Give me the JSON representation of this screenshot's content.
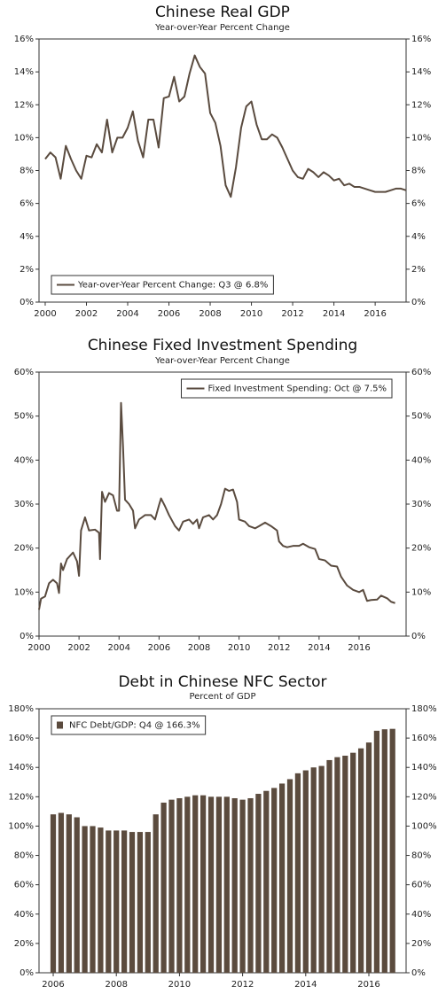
{
  "chart_data": [
    {
      "type": "line",
      "title": "Chinese Real GDP",
      "subtitle": "Year-over-Year Percent Change",
      "x": [
        2000,
        2000.25,
        2000.5,
        2000.75,
        2001,
        2001.25,
        2001.5,
        2001.75,
        2002,
        2002.25,
        2002.5,
        2002.75,
        2003,
        2003.25,
        2003.5,
        2003.75,
        2004,
        2004.25,
        2004.5,
        2004.75,
        2005,
        2005.25,
        2005.5,
        2005.75,
        2006,
        2006.25,
        2006.5,
        2006.75,
        2007,
        2007.25,
        2007.5,
        2007.75,
        2008,
        2008.25,
        2008.5,
        2008.75,
        2009,
        2009.25,
        2009.5,
        2009.75,
        2010,
        2010.25,
        2010.5,
        2010.75,
        2011,
        2011.25,
        2011.5,
        2011.75,
        2012,
        2012.25,
        2012.5,
        2012.75,
        2013,
        2013.25,
        2013.5,
        2013.75,
        2014,
        2014.25,
        2014.5,
        2014.75,
        2015,
        2015.25,
        2015.5,
        2015.75,
        2016,
        2016.25,
        2016.5,
        2016.75,
        2017,
        2017.25,
        2017.5
      ],
      "series": [
        {
          "name": "Year-over-Year Percent Change: Q3 @ 6.8%",
          "color": "#5a4b3f",
          "values": [
            8.7,
            9.1,
            8.8,
            7.5,
            9.5,
            8.7,
            8.0,
            7.5,
            8.9,
            8.8,
            9.6,
            9.1,
            11.1,
            9.1,
            10.0,
            10.0,
            10.6,
            11.6,
            9.8,
            8.8,
            11.1,
            11.1,
            9.4,
            12.4,
            12.5,
            13.7,
            12.2,
            12.5,
            13.9,
            15.0,
            14.3,
            13.9,
            11.5,
            10.9,
            9.5,
            7.1,
            6.4,
            8.2,
            10.6,
            11.9,
            12.2,
            10.8,
            9.9,
            9.9,
            10.2,
            10.0,
            9.4,
            8.7,
            8.0,
            7.6,
            7.5,
            8.1,
            7.9,
            7.6,
            7.9,
            7.7,
            7.4,
            7.5,
            7.1,
            7.2,
            7.0,
            7.0,
            6.9,
            6.8,
            6.7,
            6.7,
            6.7,
            6.8,
            6.9,
            6.9,
            6.8
          ]
        }
      ],
      "xlim": [
        1999.7,
        2017.5
      ],
      "xticks": [
        2000,
        2002,
        2004,
        2006,
        2008,
        2010,
        2012,
        2014,
        2016
      ],
      "ylim": [
        0,
        16
      ],
      "yticks": [
        {
          "value": 0,
          "label": "0%"
        },
        {
          "value": 2,
          "label": "2%"
        },
        {
          "value": 4,
          "label": "4%"
        },
        {
          "value": 6,
          "label": "6%"
        },
        {
          "value": 8,
          "label": "8%"
        },
        {
          "value": 10,
          "label": "10%"
        },
        {
          "value": 12,
          "label": "12%"
        },
        {
          "value": 14,
          "label": "14%"
        },
        {
          "value": 16,
          "label": "16%"
        }
      ],
      "legend": "lower left"
    },
    {
      "type": "line",
      "title": "Chinese Fixed Investment Spending",
      "subtitle": "Year-over-Year Percent Change",
      "x": [
        2000.0,
        2000.1,
        2000.3,
        2000.5,
        2000.7,
        2000.9,
        2001.0,
        2001.1,
        2001.2,
        2001.4,
        2001.7,
        2001.9,
        2002.0,
        2002.1,
        2002.3,
        2002.5,
        2002.8,
        2003.0,
        2003.05,
        2003.15,
        2003.3,
        2003.5,
        2003.7,
        2003.9,
        2004.0,
        2004.1,
        2004.2,
        2004.3,
        2004.5,
        2004.7,
        2004.8,
        2005.0,
        2005.3,
        2005.6,
        2005.8,
        2006.0,
        2006.1,
        2006.3,
        2006.5,
        2006.8,
        2007.0,
        2007.2,
        2007.5,
        2007.7,
        2007.9,
        2008.0,
        2008.2,
        2008.5,
        2008.7,
        2008.9,
        2009.1,
        2009.3,
        2009.5,
        2009.7,
        2009.9,
        2010.0,
        2010.3,
        2010.5,
        2010.8,
        2011.0,
        2011.3,
        2011.6,
        2011.9,
        2012.0,
        2012.2,
        2012.4,
        2012.7,
        2013.0,
        2013.2,
        2013.5,
        2013.8,
        2014.0,
        2014.3,
        2014.6,
        2014.9,
        2015.1,
        2015.4,
        2015.7,
        2016.0,
        2016.2,
        2016.4,
        2016.6,
        2016.9,
        2017.1,
        2017.4,
        2017.6,
        2017.8
      ],
      "series": [
        {
          "name": "Fixed Investment Spending: Oct @ 7.5%",
          "color": "#5a4b3f",
          "values": [
            6,
            8.5,
            9,
            12,
            12.8,
            12,
            9.8,
            16.5,
            15,
            17.5,
            19,
            17,
            13.7,
            24,
            27,
            24,
            24.2,
            23.5,
            17.5,
            32.8,
            30.5,
            32.5,
            32,
            28.5,
            28.5,
            53,
            43,
            31,
            30,
            28.5,
            24.5,
            26.5,
            27.5,
            27.5,
            26.5,
            29.8,
            31.3,
            29.5,
            27.5,
            25,
            24,
            26,
            26.5,
            25.5,
            26.5,
            24.5,
            27,
            27.5,
            26.5,
            27.5,
            30,
            33.5,
            33,
            33.3,
            30.5,
            26.5,
            26,
            25,
            24.5,
            25,
            25.8,
            25,
            24,
            21.5,
            20.5,
            20.2,
            20.5,
            20.5,
            21,
            20.2,
            19.8,
            17.5,
            17.2,
            16,
            15.8,
            13.5,
            11.5,
            10.5,
            10,
            10.5,
            8,
            8.2,
            8.3,
            9.2,
            8.6,
            7.8,
            7.5
          ]
        }
      ],
      "xlim": [
        2000,
        2018.35
      ],
      "xticks": [
        2000,
        2002,
        2004,
        2006,
        2008,
        2010,
        2012,
        2014,
        2016
      ],
      "ylim": [
        0,
        60
      ],
      "yticks": [
        {
          "value": 0,
          "label": "0%"
        },
        {
          "value": 10,
          "label": "10%"
        },
        {
          "value": 20,
          "label": "20%"
        },
        {
          "value": 30,
          "label": "30%"
        },
        {
          "value": 40,
          "label": "40%"
        },
        {
          "value": 50,
          "label": "50%"
        },
        {
          "value": 60,
          "label": "60%"
        }
      ],
      "legend": "upper right"
    },
    {
      "type": "bar",
      "title": "Debt in Chinese NFC Sector",
      "subtitle": "Percent of GDP",
      "x": [
        2006,
        2006.25,
        2006.5,
        2006.75,
        2007,
        2007.25,
        2007.5,
        2007.75,
        2008,
        2008.25,
        2008.5,
        2008.75,
        2009,
        2009.25,
        2009.5,
        2009.75,
        2010,
        2010.25,
        2010.5,
        2010.75,
        2011,
        2011.25,
        2011.5,
        2011.75,
        2012,
        2012.25,
        2012.5,
        2012.75,
        2013,
        2013.25,
        2013.5,
        2013.75,
        2014,
        2014.25,
        2014.5,
        2014.75,
        2015,
        2015.25,
        2015.5,
        2015.75,
        2016,
        2016.25,
        2016.5,
        2016.75
      ],
      "series": [
        {
          "name": "NFC Debt/GDP: Q4 @ 166.3%",
          "color": "#5b4b3e",
          "values": [
            108,
            109,
            108,
            106,
            100,
            100,
            99,
            97,
            97,
            97,
            96,
            96,
            96,
            108,
            116,
            118,
            119,
            120,
            121,
            121,
            120,
            120,
            120,
            119,
            118,
            119,
            122,
            124,
            126,
            129,
            132,
            136,
            138,
            140,
            141,
            145,
            147,
            148,
            150,
            153,
            157,
            165,
            166,
            166.3
          ]
        }
      ],
      "xlim": [
        2005.55,
        2017.18
      ],
      "xticks": [
        2006,
        2008,
        2010,
        2012,
        2014,
        2016
      ],
      "ylim": [
        0,
        180
      ],
      "yticks": [
        {
          "value": 0,
          "label": "0%"
        },
        {
          "value": 20,
          "label": "20%"
        },
        {
          "value": 40,
          "label": "40%"
        },
        {
          "value": 60,
          "label": "60%"
        },
        {
          "value": 80,
          "label": "80%"
        },
        {
          "value": 100,
          "label": "100%"
        },
        {
          "value": 120,
          "label": "120%"
        },
        {
          "value": 140,
          "label": "140%"
        },
        {
          "value": 160,
          "label": "160%"
        },
        {
          "value": 180,
          "label": "180%"
        }
      ],
      "legend": "upper left"
    }
  ]
}
